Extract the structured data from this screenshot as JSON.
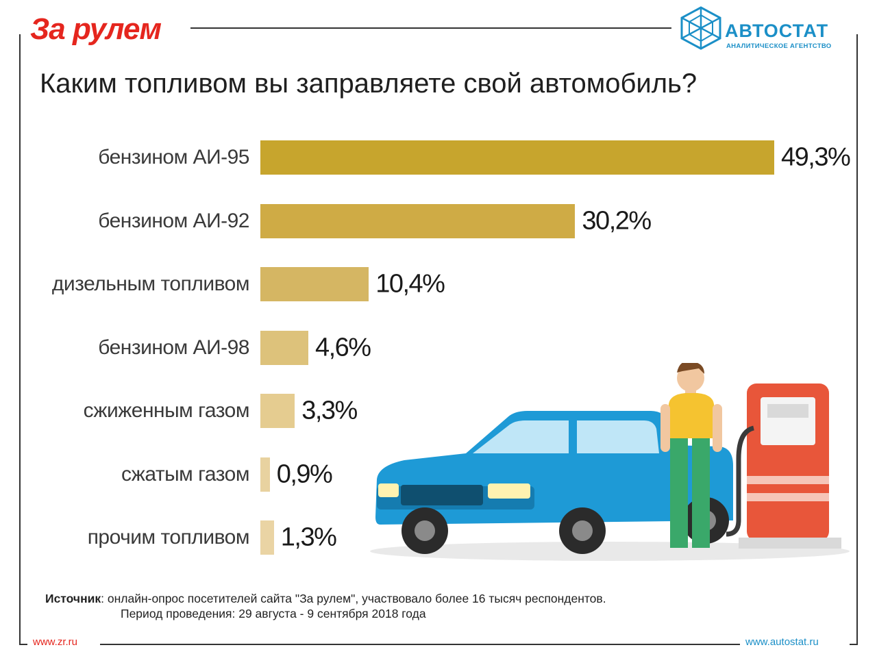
{
  "header": {
    "left_logo": "За рулем",
    "right_logo_name": "АВТОСТАТ",
    "right_logo_sub": "АНАЛИТИЧЕСКОЕ АГЕНТСТВО"
  },
  "chart_data": {
    "type": "bar",
    "orientation": "horizontal",
    "title": "Каким топливом вы заправляете свой автомобиль?",
    "categories": [
      "бензином АИ-95",
      "бензином АИ-92",
      "дизельным топливом",
      "бензином АИ-98",
      "сжиженным газом",
      "сжатым газом",
      "прочим топливом"
    ],
    "values": [
      49.3,
      30.2,
      10.4,
      4.6,
      3.3,
      0.9,
      1.3
    ],
    "value_labels": [
      "49,3%",
      "30,2%",
      "10,4%",
      "4,6%",
      "3,3%",
      "0,9%",
      "1,3%"
    ],
    "bar_colors": [
      "#c7a52d",
      "#cfab45",
      "#d5b663",
      "#ddc27b",
      "#e5cc90",
      "#e8d2a0",
      "#ead4a4"
    ],
    "xlim": [
      0,
      49.3
    ],
    "grid": false,
    "legend": "none"
  },
  "source": {
    "label": "Источник",
    "text": ": онлайн-опрос посетителей сайта \"За рулем\", участвовало более 16 тысяч респондентов.",
    "period": "Период проведения: 29 августа - 9 сентября 2018 года"
  },
  "footer": {
    "left": "www.zr.ru",
    "right": "www.autostat.ru"
  },
  "colors": {
    "brand_red": "#e5261e",
    "brand_blue": "#1b8fc7"
  }
}
